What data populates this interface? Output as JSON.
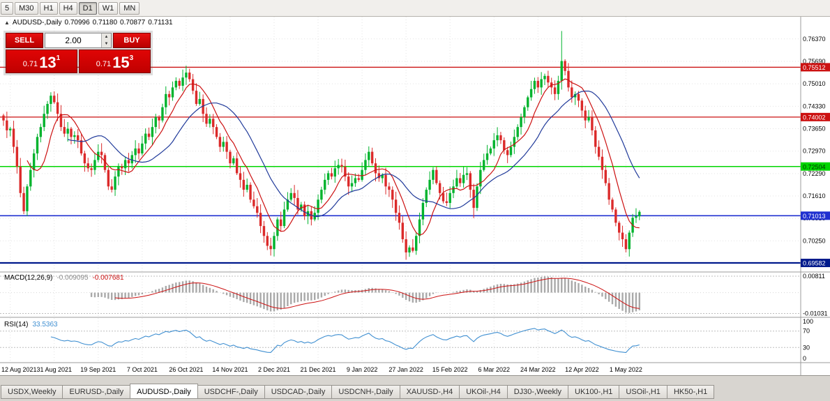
{
  "toolbar": {
    "timeframes": [
      {
        "label": "5",
        "active": false
      },
      {
        "label": "M30",
        "active": false
      },
      {
        "label": "H1",
        "active": false
      },
      {
        "label": "H4",
        "active": false
      },
      {
        "label": "D1",
        "active": true
      },
      {
        "label": "W1",
        "active": false
      },
      {
        "label": "MN",
        "active": false
      }
    ]
  },
  "title": {
    "direction_icon": "▲",
    "symbol": "AUDUSD-,Daily",
    "open": "0.70996",
    "high": "0.71180",
    "low": "0.70877",
    "close": "0.71131"
  },
  "trade_panel": {
    "sell_label": "SELL",
    "buy_label": "BUY",
    "volume": "2.00",
    "spin_up_icon": "▲",
    "spin_down_icon": "▼",
    "sell_price": {
      "prefix": "0.71",
      "big": "13",
      "sup": "1"
    },
    "buy_price": {
      "prefix": "0.71",
      "big": "15",
      "sup": "3"
    }
  },
  "tabs": [
    {
      "label": "USDX,Weekly",
      "active": false
    },
    {
      "label": "EURUSD-,Daily",
      "active": false
    },
    {
      "label": "AUDUSD-,Daily",
      "active": true
    },
    {
      "label": "USDCHF-,Daily",
      "active": false
    },
    {
      "label": "USDCAD-,Daily",
      "active": false
    },
    {
      "label": "USDCNH-,Daily",
      "active": false
    },
    {
      "label": "XAUUSD-,H4",
      "active": false
    },
    {
      "label": "UKOil-,H4",
      "active": false
    },
    {
      "label": "DJ30-,Weekly",
      "active": false
    },
    {
      "label": "UK100-,H1",
      "active": false
    },
    {
      "label": "USOil-,H1",
      "active": false
    },
    {
      "label": "HK50-,H1",
      "active": false
    }
  ],
  "chart_data": {
    "type": "candlestick",
    "title": "AUDUSD-,Daily",
    "price_range": {
      "min": 0.6935,
      "max": 0.77
    },
    "price_axis": [
      0.7637,
      0.7569,
      0.7501,
      0.7433,
      0.7365,
      0.7297,
      0.7229,
      0.7161,
      0.7093,
      0.7025
    ],
    "date_axis": [
      {
        "label": "12 Aug 2021",
        "index": 2
      },
      {
        "label": "31 Aug 2021",
        "index": 15
      },
      {
        "label": "19 Sep 2021",
        "index": 28
      },
      {
        "label": "7 Oct 2021",
        "index": 41
      },
      {
        "label": "26 Oct 2021",
        "index": 54
      },
      {
        "label": "14 Nov 2021",
        "index": 67
      },
      {
        "label": "2 Dec 2021",
        "index": 80
      },
      {
        "label": "21 Dec 2021",
        "index": 93
      },
      {
        "label": "9 Jan 2022",
        "index": 106
      },
      {
        "label": "27 Jan 2022",
        "index": 119
      },
      {
        "label": "15 Feb 2022",
        "index": 132
      },
      {
        "label": "6 Mar 2022",
        "index": 145
      },
      {
        "label": "24 Mar 2022",
        "index": 158
      },
      {
        "label": "12 Apr 2022",
        "index": 171
      },
      {
        "label": "1 May 2022",
        "index": 184
      }
    ],
    "closes": [
      0.739,
      0.736,
      0.7365,
      0.731,
      0.725,
      0.717,
      0.7115,
      0.719,
      0.724,
      0.729,
      0.734,
      0.737,
      0.741,
      0.744,
      0.7465,
      0.7445,
      0.741,
      0.737,
      0.735,
      0.7365,
      0.734,
      0.7345,
      0.733,
      0.729,
      0.726,
      0.7245,
      0.724,
      0.727,
      0.7295,
      0.7285,
      0.724,
      0.719,
      0.718,
      0.722,
      0.725,
      0.7245,
      0.727,
      0.726,
      0.7285,
      0.7305,
      0.729,
      0.732,
      0.735,
      0.734,
      0.737,
      0.74,
      0.739,
      0.743,
      0.747,
      0.746,
      0.749,
      0.751,
      0.7495,
      0.752,
      0.7535,
      0.7515,
      0.748,
      0.744,
      0.7455,
      0.741,
      0.738,
      0.7395,
      0.737,
      0.734,
      0.731,
      0.7325,
      0.7295,
      0.726,
      0.7275,
      0.723,
      0.721,
      0.718,
      0.7195,
      0.715,
      0.713,
      0.711,
      0.707,
      0.704,
      0.701,
      0.7,
      0.704,
      0.709,
      0.707,
      0.712,
      0.715,
      0.717,
      0.7155,
      0.712,
      0.7135,
      0.71,
      0.7115,
      0.709,
      0.711,
      0.715,
      0.718,
      0.721,
      0.723,
      0.722,
      0.7245,
      0.7255,
      0.725,
      0.722,
      0.719,
      0.72,
      0.7215,
      0.721,
      0.724,
      0.727,
      0.7295,
      0.726,
      0.723,
      0.7215,
      0.7225,
      0.719,
      0.718,
      0.715,
      0.711,
      0.708,
      0.703,
      0.699,
      0.7005,
      0.6995,
      0.704,
      0.709,
      0.714,
      0.718,
      0.721,
      0.724,
      0.72,
      0.717,
      0.7145,
      0.714,
      0.717,
      0.719,
      0.7215,
      0.72,
      0.7225,
      0.723,
      0.718,
      0.7125,
      0.719,
      0.724,
      0.727,
      0.729,
      0.7305,
      0.733,
      0.7345,
      0.733,
      0.73,
      0.7285,
      0.731,
      0.734,
      0.737,
      0.74,
      0.743,
      0.746,
      0.7485,
      0.751,
      0.749,
      0.7515,
      0.7525,
      0.7505,
      0.749,
      0.747,
      0.751,
      0.757,
      0.754,
      0.749,
      0.746,
      0.747,
      0.745,
      0.742,
      0.739,
      0.74,
      0.736,
      0.731,
      0.728,
      0.724,
      0.72,
      0.715,
      0.712,
      0.708,
      0.705,
      0.703,
      0.7,
      0.705,
      0.7095,
      0.70996,
      0.71131
    ],
    "wick_overrides": {
      "6": {
        "l": 0.7106
      },
      "15": {
        "h": 0.7478
      },
      "54": {
        "h": 0.7556
      },
      "119": {
        "l": 0.6968
      },
      "139": {
        "l": 0.7094
      },
      "165": {
        "h": 0.7661
      },
      "184": {
        "l": 0.699
      },
      "188": {
        "h": 0.7118,
        "l": 0.70877
      }
    },
    "levels": [
      {
        "label": "0.75512",
        "price": 0.75512,
        "color": "#cc1111",
        "text_color": "#ffffff",
        "width": 1.3
      },
      {
        "label": "0.74002",
        "price": 0.74002,
        "color": "#cc1111",
        "text_color": "#ffffff",
        "width": 1.3
      },
      {
        "label": "0.72504",
        "price": 0.72504,
        "color": "#00d500",
        "text_color": "#003300",
        "width": 1.6
      },
      {
        "label": "0.71013",
        "price": 0.71013,
        "color": "#2030d0",
        "text_color": "#ffffff",
        "width": 1.6
      },
      {
        "label": "0.69582",
        "price": 0.69582,
        "color": "#001a8c",
        "text_color": "#ffffff",
        "width": 2.2
      }
    ],
    "moving_averages": [
      {
        "period": 8,
        "color": "#cc1111"
      },
      {
        "period": 20,
        "color": "#203a9a"
      }
    ],
    "colors": {
      "up": "#00b32d",
      "down": "#db2a2a",
      "grid": "#e3e3e3"
    },
    "macd": {
      "name": "MACD(12,26,9)",
      "value_main": "-0.009095",
      "value_signal": "-0.007681",
      "params": {
        "fast": 12,
        "slow": 26,
        "signal": 9
      },
      "axis_max": 0.00811,
      "axis_min": -0.01031,
      "axis_max_label": "0.00811",
      "axis_min_label": "-0.01031",
      "axis_range": {
        "min": -0.0115,
        "max": 0.0095
      },
      "histogram_color": "#a9a9a9",
      "signal_color": "#cc1111"
    },
    "rsi": {
      "name": "RSI(14)",
      "value": "33.5363",
      "period": 14,
      "color": "#3f8fd1",
      "axis_labels": [
        100,
        70,
        30,
        0
      ],
      "level_lines": [
        70,
        30
      ]
    }
  }
}
